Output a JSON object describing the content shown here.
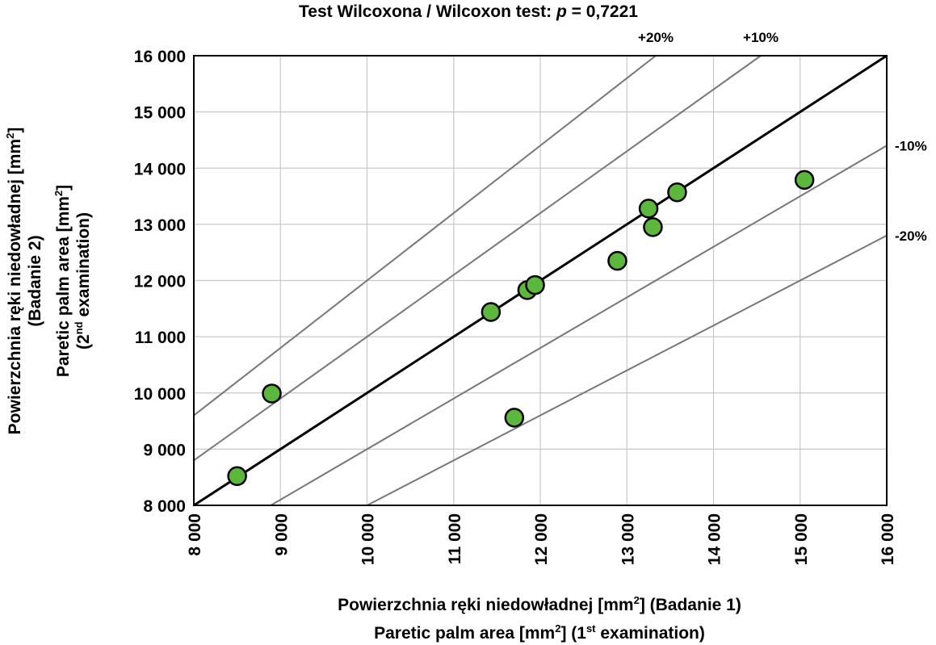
{
  "chart_data": {
    "type": "scatter",
    "title_prefix": "Test Wilcoxona / Wilcoxon test: ",
    "title_p": "p",
    "title_suffix": " = 0,7221",
    "xlabel_line1": {
      "pre": "Powierzchnia ręki niedowładnej [mm",
      "sup": "2",
      "post": "] (Badanie 1)"
    },
    "xlabel_line2": {
      "pre": "Paretic palm area [mm",
      "sup": "2",
      "mid": "] (1",
      "sup2": "st",
      "post": " examination)"
    },
    "ylabel_line1": {
      "pre": "Powierzchnia ręki niedowładnej [mm",
      "sup": "2",
      "post": "]"
    },
    "ylabel_line2": {
      "text": "(Badanie 2)"
    },
    "ylabel_line3": {
      "pre": "Paretic palm area [mm",
      "sup": "2",
      "post": "]"
    },
    "ylabel_line4": {
      "pre": "(2",
      "sup": "nd",
      "post": " examination)"
    },
    "xlim": [
      8000,
      16000
    ],
    "ylim": [
      8000,
      16000
    ],
    "xticks": [
      8000,
      9000,
      10000,
      11000,
      12000,
      13000,
      14000,
      15000,
      16000
    ],
    "yticks": [
      8000,
      9000,
      10000,
      11000,
      12000,
      13000,
      14000,
      15000,
      16000
    ],
    "xtick_labels": [
      "8 000",
      "9 000",
      "10 000",
      "11 000",
      "12 000",
      "13 000",
      "14 000",
      "15 000",
      "16 000"
    ],
    "ytick_labels": [
      "8 000",
      "9 000",
      "10 000",
      "11 000",
      "12 000",
      "13 000",
      "14 000",
      "15 000",
      "16 000"
    ],
    "grid": true,
    "reference_lines": [
      {
        "label": "",
        "factor": 1.0,
        "color": "#000000"
      },
      {
        "label": "+10%",
        "factor": 1.1,
        "color": "#777777"
      },
      {
        "label": "+20%",
        "factor": 1.2,
        "color": "#777777"
      },
      {
        "label": "-10%",
        "factor": 0.9,
        "color": "#777777"
      },
      {
        "label": "-20%",
        "factor": 0.8,
        "color": "#777777"
      }
    ],
    "marker_color": "#5cb83c",
    "points": [
      {
        "x": 8500,
        "y": 8520
      },
      {
        "x": 8900,
        "y": 9990
      },
      {
        "x": 11430,
        "y": 11440
      },
      {
        "x": 11700,
        "y": 9560
      },
      {
        "x": 11850,
        "y": 11830
      },
      {
        "x": 11940,
        "y": 11920
      },
      {
        "x": 12890,
        "y": 12350
      },
      {
        "x": 13250,
        "y": 13280
      },
      {
        "x": 13300,
        "y": 12950
      },
      {
        "x": 13580,
        "y": 13570
      },
      {
        "x": 15050,
        "y": 13790
      }
    ]
  }
}
